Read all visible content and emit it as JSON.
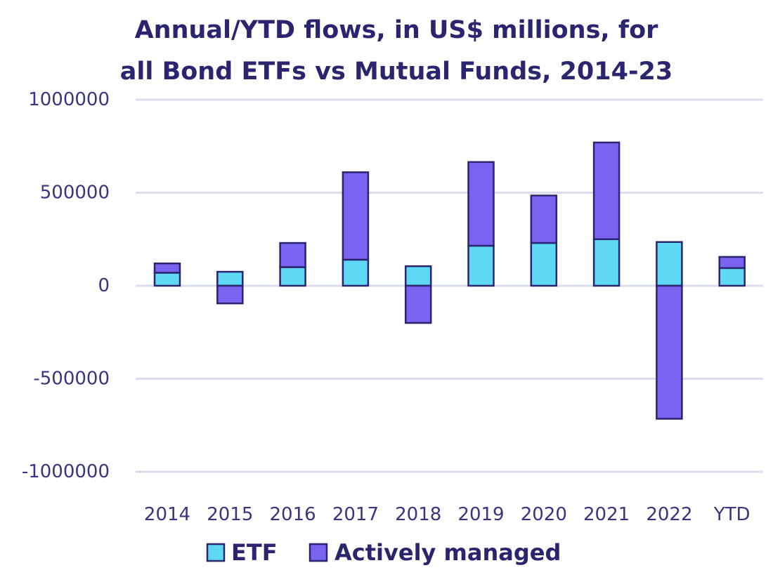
{
  "chart_data": {
    "type": "bar",
    "stacked": true,
    "title_lines": [
      "Annual/YTD flows, in US$ millions, for",
      "all Bond ETFs vs Mutual Funds, 2014-23"
    ],
    "categories": [
      "2014",
      "2015",
      "2016",
      "2017",
      "2018",
      "2019",
      "2020",
      "2021",
      "2022",
      "YTD"
    ],
    "series": [
      {
        "name": "ETF",
        "color": "#5fd8f5",
        "values": [
          70000,
          75000,
          100000,
          140000,
          105000,
          215000,
          230000,
          250000,
          235000,
          95000
        ]
      },
      {
        "name": "Actively managed",
        "color": "#7b63f1",
        "values": [
          50000,
          -95000,
          130000,
          470000,
          -200000,
          450000,
          255000,
          520000,
          -715000,
          60000
        ]
      }
    ],
    "y_ticks": [
      1000000,
      500000,
      0,
      -500000,
      -1000000
    ],
    "y_tick_labels": [
      "1000000",
      "500000",
      "0",
      "-500000",
      "-1000000"
    ],
    "ylim": [
      -1000000,
      1000000
    ],
    "grid": true,
    "legend_position": "bottom",
    "outline_color": "#2b2570",
    "gridline_color": "#dcdcf0",
    "text_color": "#2b2570"
  }
}
